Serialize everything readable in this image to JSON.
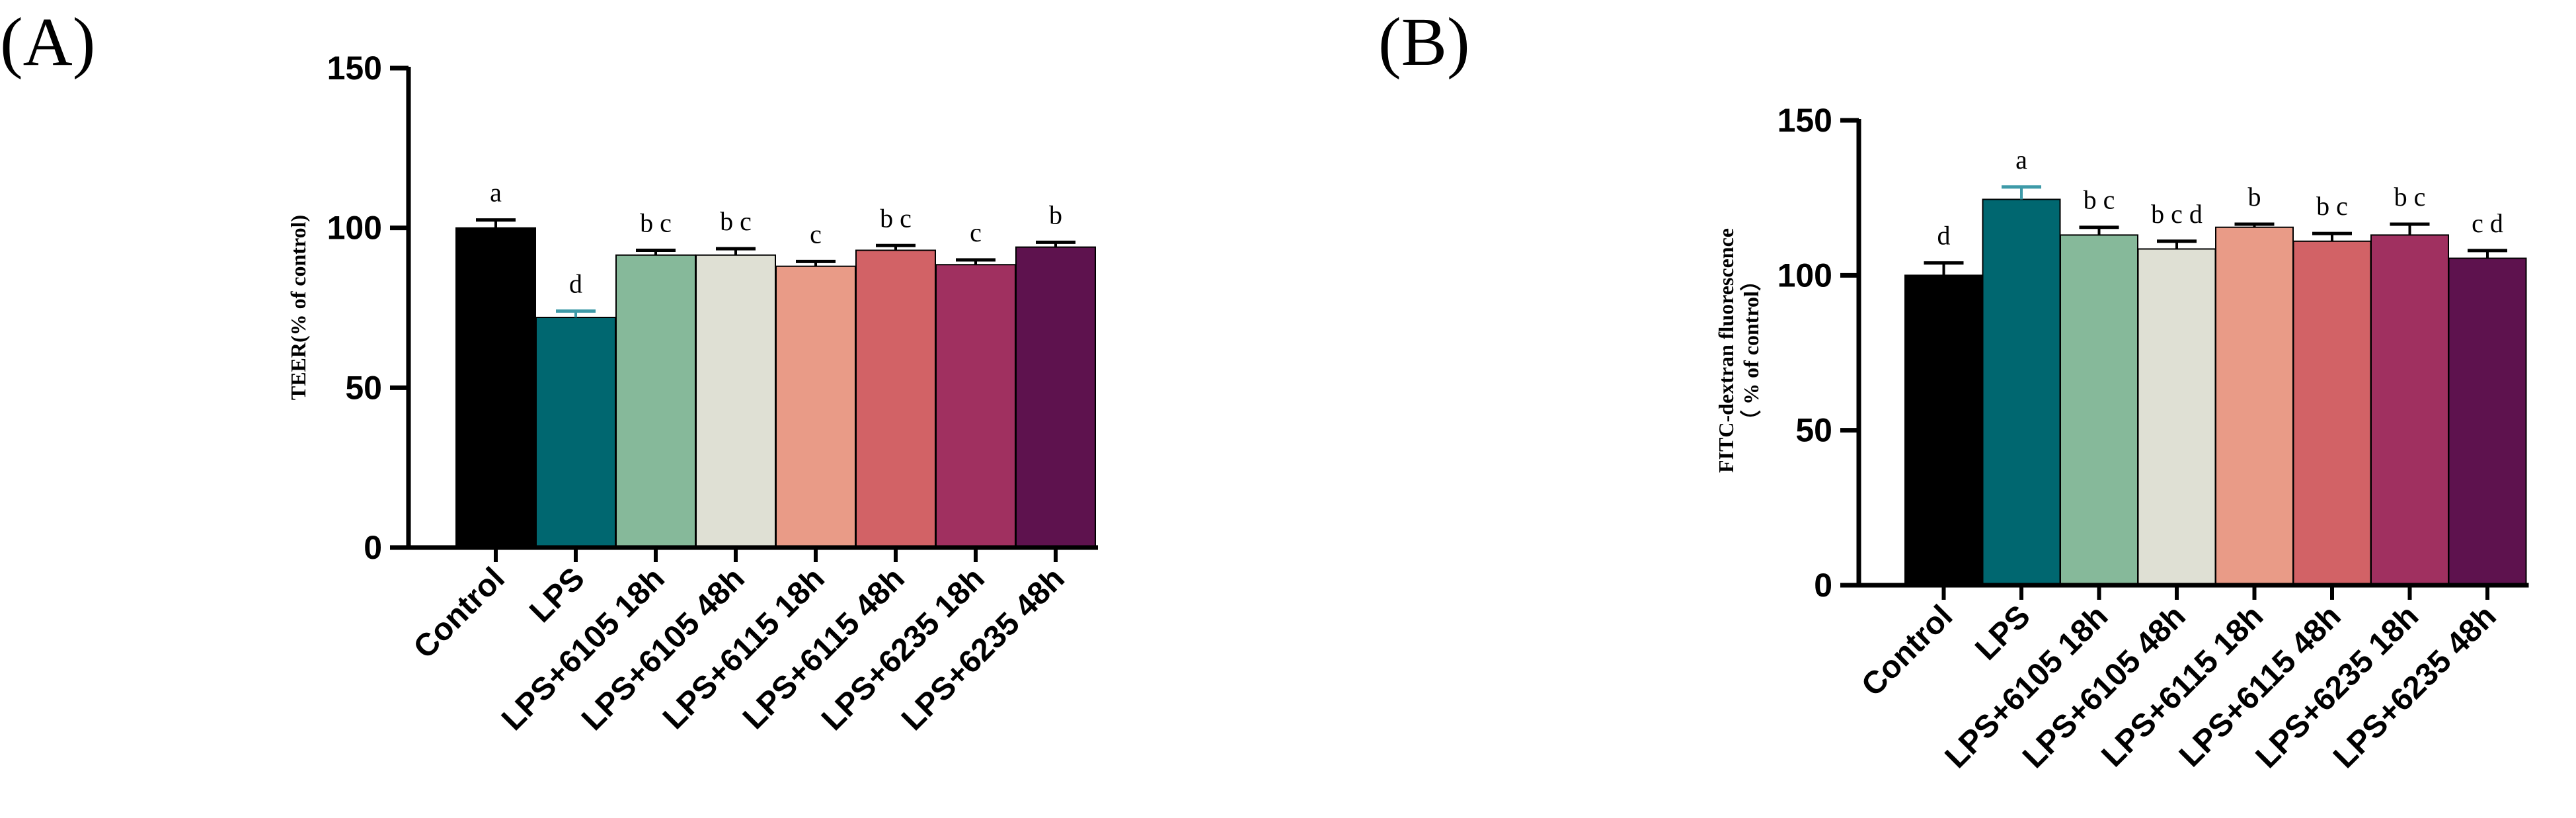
{
  "chart_data": [
    {
      "panel": "(A)",
      "type": "bar",
      "ylabel": "TEER(% of control)",
      "ylim": [
        0,
        150
      ],
      "yticks": [
        0,
        50,
        100,
        150
      ],
      "categories": [
        "Control",
        "LPS",
        "LPS+6105 18h",
        "LPS+6105 48h",
        "LPS+6115 18h",
        "LPS+6115 48h",
        "LPS+6235 18h",
        "LPS+6235 48h"
      ],
      "values": [
        100,
        72,
        91.5,
        91.5,
        88,
        93,
        88.5,
        94
      ],
      "errors": [
        2.5,
        2,
        1.5,
        2,
        1.5,
        1.5,
        1.5,
        1.5
      ],
      "significance": [
        "a",
        "d",
        "bc",
        "bc",
        "c",
        "bc",
        "c",
        "b"
      ],
      "colors": [
        "#000000",
        "#006770",
        "#86b99a",
        "#dfe0d4",
        "#e99b87",
        "#d26266",
        "#a03060",
        "#5e124e"
      ],
      "error_colors": [
        "#000000",
        "#3e9aa8",
        "#000000",
        "#000000",
        "#000000",
        "#000000",
        "#000000",
        "#000000"
      ]
    },
    {
      "panel": "(B)",
      "type": "bar",
      "ylabel": "FITC-dextran fluorescence",
      "ylabel2": "（ % of control）",
      "ylim": [
        0,
        150
      ],
      "yticks": [
        0,
        50,
        100,
        150
      ],
      "categories": [
        "Control",
        "LPS",
        "LPS+6105 18h",
        "LPS+6105 48h",
        "LPS+6115 18h",
        "LPS+6115 48h",
        "LPS+6235 18h",
        "LPS+6235 48h"
      ],
      "values": [
        100,
        124.5,
        113,
        108.5,
        115.5,
        111,
        113,
        105.5
      ],
      "errors": [
        4,
        4,
        2.5,
        2.5,
        1,
        2.5,
        3.5,
        2.5
      ],
      "significance": [
        "d",
        "a",
        "bc",
        "bcd",
        "b",
        "bc",
        "bc",
        "cd"
      ],
      "colors": [
        "#000000",
        "#006770",
        "#86b99a",
        "#dfe0d4",
        "#e99b87",
        "#d26266",
        "#a03060",
        "#5e124e"
      ],
      "error_colors": [
        "#000000",
        "#3e9aa8",
        "#000000",
        "#000000",
        "#000000",
        "#000000",
        "#000000",
        "#000000"
      ]
    }
  ]
}
